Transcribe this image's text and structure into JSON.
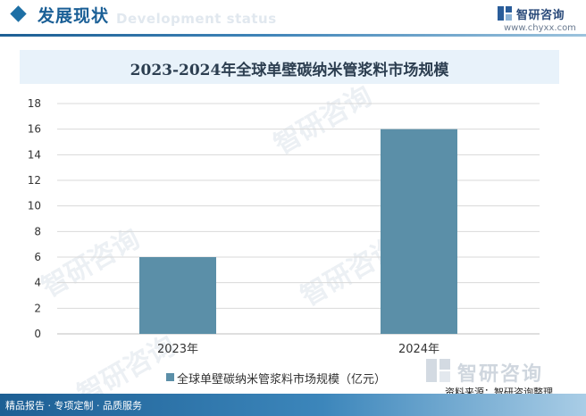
{
  "header": {
    "title": "发展现状",
    "subtitle": "Development status"
  },
  "logo": {
    "name": "智研咨询",
    "url": "www.chyxx.com"
  },
  "watermark": {
    "text": "智研咨询"
  },
  "source": "资料来源：智研咨询整理",
  "footer": "精品报告 · 专项定制 · 品质服务",
  "colors": {
    "bar": "#5b8fa8",
    "grid": "#d9d9d9",
    "accent": "#1d6fa5"
  },
  "chart_data": {
    "type": "bar",
    "title": "2023-2024年全球单壁碳纳米管浆料市场规模",
    "categories": [
      "2023年",
      "2024年"
    ],
    "series": [
      {
        "name": "全球单壁碳纳米管浆料市场规模（亿元）",
        "values": [
          6,
          16
        ]
      }
    ],
    "ylim": [
      0,
      18
    ],
    "yticks": [
      0,
      2,
      4,
      6,
      8,
      10,
      12,
      14,
      16,
      18
    ],
    "grid": true,
    "legend": "bottom-center"
  }
}
